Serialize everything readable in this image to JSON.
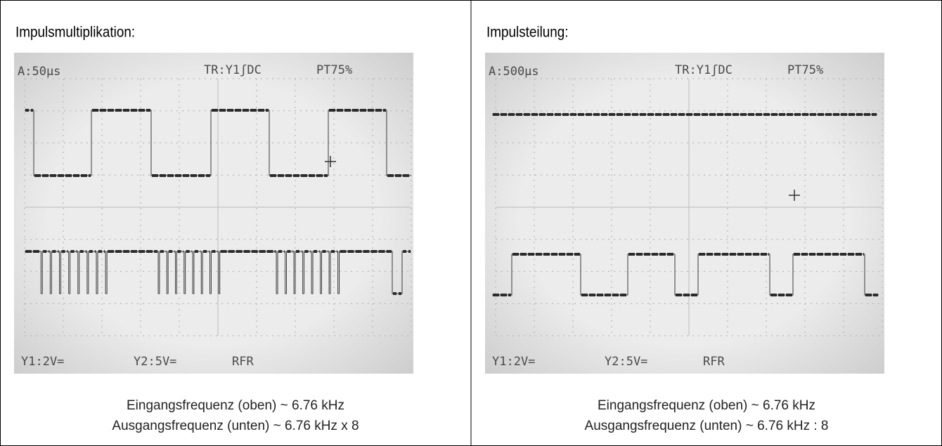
{
  "panels": [
    {
      "title": "Impulsmultiplikation:",
      "screen": {
        "timebase": "A:50µs",
        "trigger": "TR:Y1ʃDC",
        "pretrigger": "PT75%",
        "ch1": "Y1:2V=",
        "ch2": "Y2:5V=",
        "mode": "RFR"
      },
      "caption": [
        "Eingangsfrequenz (oben) ~ 6.76 kHz",
        "Ausgangsfrequenz (unten) ~ 6.76 kHz x 8"
      ]
    },
    {
      "title": "Impulsteilung:",
      "screen": {
        "timebase": "A:500µs",
        "trigger": "TR:Y1ʃDC",
        "pretrigger": "PT75%",
        "ch1": "Y1:2V=",
        "ch2": "Y2:5V=",
        "mode": "RFR"
      },
      "caption": [
        "Eingangsfrequenz (oben) ~ 6.76 kHz",
        "Ausgangsfrequenz (unten) ~ 6.76 kHz : 8"
      ]
    }
  ]
}
